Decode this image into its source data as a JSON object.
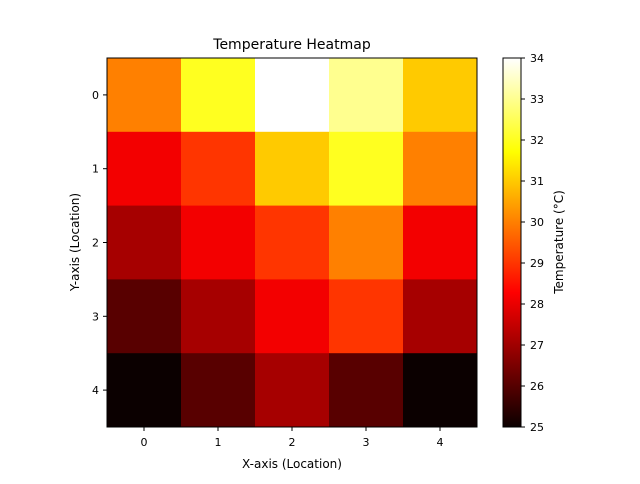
{
  "chart_data": {
    "type": "heatmap",
    "title": "Temperature Heatmap",
    "xlabel": "X-axis (Location)",
    "ylabel": "Y-axis (Location)",
    "x_categories": [
      "0",
      "1",
      "2",
      "3",
      "4"
    ],
    "y_categories": [
      "0",
      "1",
      "2",
      "3",
      "4"
    ],
    "values": [
      [
        30,
        32,
        34,
        33,
        31
      ],
      [
        28,
        29,
        31,
        32,
        30
      ],
      [
        27,
        28,
        29,
        30,
        28
      ],
      [
        26,
        27,
        28,
        29,
        27
      ],
      [
        25,
        26,
        27,
        26,
        25
      ]
    ],
    "colorbar": {
      "label": "Temperature (°C)",
      "min": 25,
      "max": 34,
      "ticks": [
        "25",
        "26",
        "27",
        "28",
        "29",
        "30",
        "31",
        "32",
        "33",
        "34"
      ],
      "colormap": "hot"
    },
    "grid": false
  }
}
